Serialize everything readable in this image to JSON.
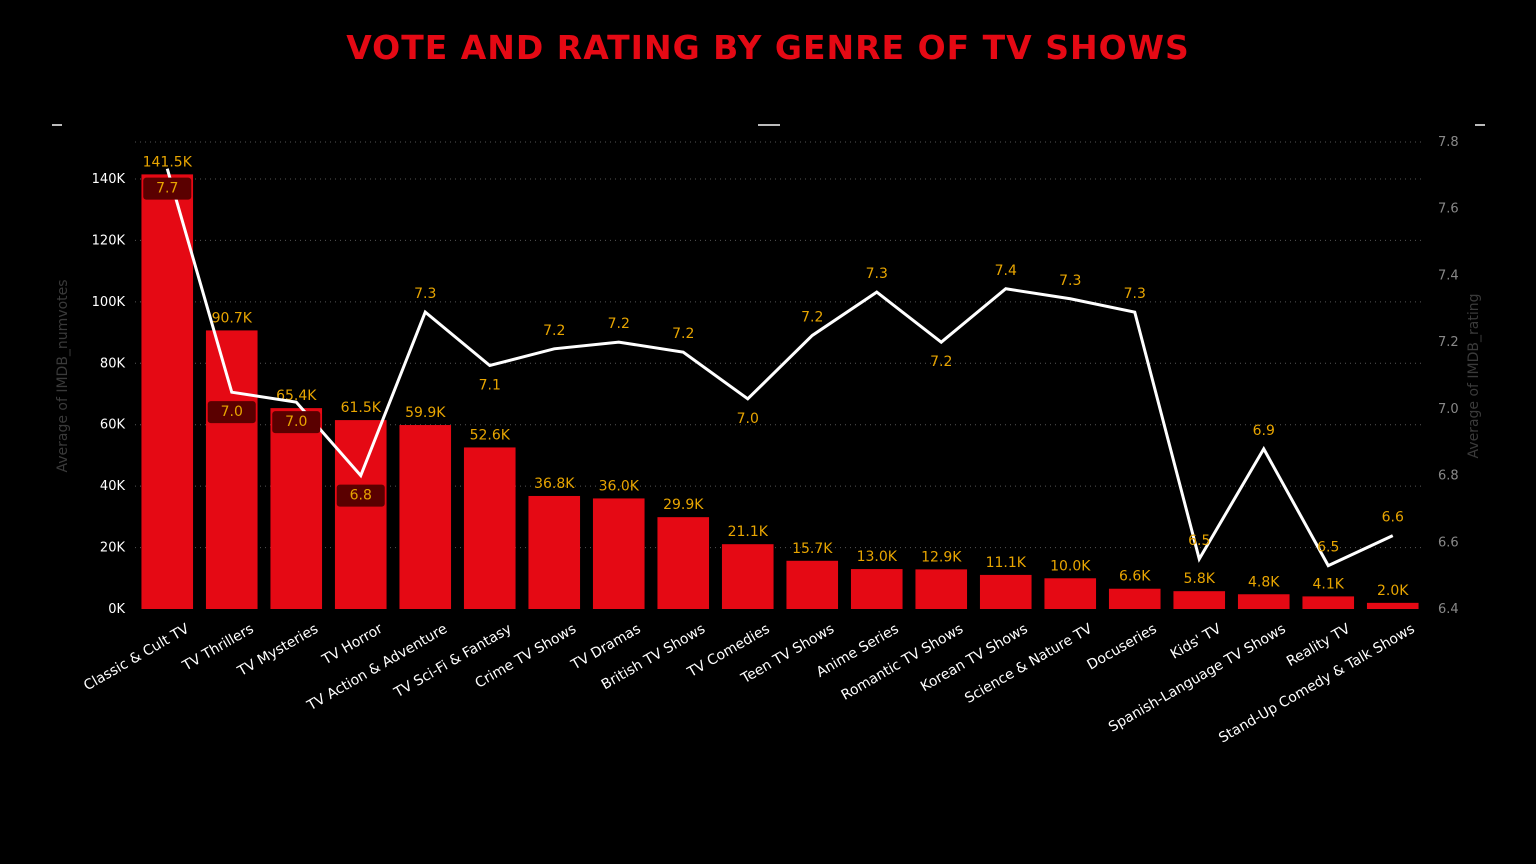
{
  "title": "VOTE AND RATING BY GENRE OF TV SHOWS",
  "colors": {
    "title": "#e50914",
    "bar": "#e50914",
    "line": "#ffffff",
    "label": "#e8a500",
    "axis_text": "#ffffff",
    "axis_title": "#3a3a3a",
    "grid": "#555555",
    "label_bg": "#5a0000"
  },
  "chart_data": {
    "type": "bar",
    "combo": "bar-line",
    "categories": [
      "Classic & Cult TV",
      "TV Thrillers",
      "TV Mysteries",
      "TV Horror",
      "TV Action & Adventure",
      "TV Sci-Fi & Fantasy",
      "Crime TV Shows",
      "TV Dramas",
      "British TV Shows",
      "TV Comedies",
      "Teen TV Shows",
      "Anime Series",
      "Romantic TV Shows",
      "Korean TV Shows",
      "Science & Nature TV",
      "Docuseries",
      "Kids' TV",
      "Spanish-Language TV Shows",
      "Reality TV",
      "Stand-Up Comedy & Talk Shows"
    ],
    "series": [
      {
        "name": "Average of IMDB_numvotes",
        "type": "bar",
        "axis": "left",
        "values": [
          141500,
          90700,
          65400,
          61500,
          59900,
          52600,
          36800,
          36000,
          29900,
          21100,
          15700,
          13000,
          12900,
          11100,
          10000,
          6600,
          5800,
          4800,
          4100,
          2000
        ],
        "labels": [
          "141.5K",
          "90.7K",
          "65.4K",
          "61.5K",
          "59.9K",
          "52.6K",
          "36.8K",
          "36.0K",
          "29.9K",
          "21.1K",
          "15.7K",
          "13.0K",
          "12.9K",
          "11.1K",
          "10.0K",
          "6.6K",
          "5.8K",
          "4.8K",
          "4.1K",
          "2.0K"
        ]
      },
      {
        "name": "Average of IMDB_rating",
        "type": "line",
        "axis": "right",
        "values": [
          7.72,
          7.05,
          7.02,
          6.8,
          7.29,
          7.13,
          7.18,
          7.2,
          7.17,
          7.03,
          7.22,
          7.35,
          7.2,
          7.36,
          7.33,
          7.29,
          6.55,
          6.88,
          6.53,
          6.62
        ],
        "labels": [
          "7.7",
          "7.0",
          "7.0",
          "6.8",
          "7.3",
          "7.1",
          "7.2",
          "7.2",
          "7.2",
          "7.0",
          "7.2",
          "7.3",
          "7.2",
          "7.4",
          "7.3",
          "7.3",
          "6.5",
          "6.9",
          "6.5",
          "6.6"
        ],
        "label_pos": [
          "below",
          "below",
          "below",
          "below",
          "above",
          "below",
          "above",
          "above",
          "above",
          "below",
          "above",
          "above",
          "below",
          "above",
          "above",
          "above",
          "above",
          "above",
          "above",
          "above"
        ],
        "label_boxed": [
          true,
          true,
          true,
          true,
          false,
          false,
          false,
          false,
          false,
          false,
          false,
          false,
          false,
          false,
          false,
          false,
          false,
          false,
          false,
          false
        ]
      }
    ],
    "ylabel": "Average of IMDB_numvotes",
    "y2label": "Average of IMDB_rating",
    "ylim": [
      0,
      140000
    ],
    "y2lim": [
      6.4,
      7.8
    ],
    "yticks": [
      0,
      20000,
      40000,
      60000,
      80000,
      100000,
      120000,
      140000
    ],
    "ytick_labels": [
      "0K",
      "20K",
      "40K",
      "60K",
      "80K",
      "100K",
      "120K",
      "140K"
    ],
    "y2ticks": [
      6.4,
      6.6,
      6.8,
      7.0,
      7.2,
      7.4,
      7.6,
      7.8
    ],
    "y2tick_labels": [
      "6.4",
      "6.6",
      "6.8",
      "7.0",
      "7.2",
      "7.4",
      "7.6",
      "7.8"
    ],
    "grid": true,
    "legend": "none"
  }
}
